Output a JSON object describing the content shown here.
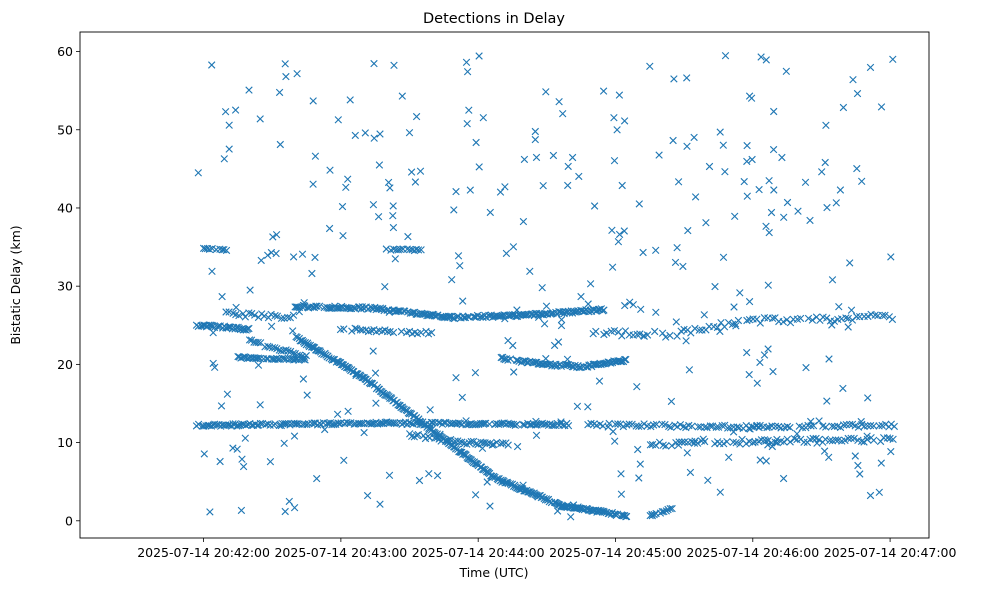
{
  "chart_data": {
    "type": "scatter",
    "title": "Detections in Delay",
    "xlabel": "Time (UTC)",
    "ylabel": "Bistatic Delay (km)",
    "marker": "x",
    "color": "#1f77b4",
    "grid": false,
    "xlim_seconds": [
      -54,
      317
    ],
    "ylim": [
      -2.2,
      62.5
    ],
    "x_ticks": [
      {
        "t": 0,
        "label": "2025-07-14 20:42:00"
      },
      {
        "t": 60,
        "label": "2025-07-14 20:43:00"
      },
      {
        "t": 120,
        "label": "2025-07-14 20:44:00"
      },
      {
        "t": 180,
        "label": "2025-07-14 20:45:00"
      },
      {
        "t": 240,
        "label": "2025-07-14 20:46:00"
      },
      {
        "t": 300,
        "label": "2025-07-14 20:47:00"
      }
    ],
    "y_ticks": [
      0,
      10,
      20,
      30,
      40,
      50,
      60
    ],
    "tracks": [
      {
        "name": "track-12-a",
        "t0": -3,
        "t1": 160,
        "step": 0.8,
        "y": [
          12.2,
          12.5,
          12.3
        ],
        "jitter": 0.15
      },
      {
        "name": "track-12-b",
        "t0": 168,
        "t1": 302,
        "step": 1.3,
        "y": [
          12.3,
          12.0,
          12.2
        ],
        "jitter": 0.2
      },
      {
        "name": "track-25-a",
        "t0": -3,
        "t1": 20,
        "step": 0.6,
        "y": [
          25.0,
          24.5
        ],
        "jitter": 0.15
      },
      {
        "name": "track-21",
        "t0": 15,
        "t1": 45,
        "step": 0.7,
        "y": [
          20.9,
          20.6
        ],
        "jitter": 0.1
      },
      {
        "name": "track-27",
        "t0": 40,
        "t1": 175,
        "step": 0.6,
        "y": [
          27.4,
          27.2,
          26.0,
          26.3,
          27.0
        ],
        "jitter": 0.15
      },
      {
        "name": "track-24-mid",
        "t0": 60,
        "t1": 100,
        "step": 1.2,
        "y": [
          24.5,
          24.0
        ],
        "jitter": 0.2
      },
      {
        "name": "track-diag",
        "t0": 40,
        "t1": 185,
        "step": 0.45,
        "y": [
          23.5,
          18.5,
          12.0,
          5.5,
          2.0,
          0.6
        ],
        "jitter": 0.15
      },
      {
        "name": "track-21-dip",
        "t0": 130,
        "t1": 185,
        "step": 0.6,
        "y": [
          20.8,
          20.0,
          19.7,
          20.6
        ],
        "jitter": 0.15
      },
      {
        "name": "track-10",
        "t0": 90,
        "t1": 135,
        "step": 1.0,
        "y": [
          11.0,
          10.0,
          9.8
        ],
        "jitter": 0.2
      },
      {
        "name": "track-10-late",
        "t0": 195,
        "t1": 302,
        "step": 1.4,
        "y": [
          9.8,
          10.2,
          10.4
        ],
        "jitter": 0.3
      },
      {
        "name": "track-24-late",
        "t0": 170,
        "t1": 302,
        "step": 1.6,
        "y": [
          24.2,
          23.8,
          25.5,
          25.8,
          26.1
        ],
        "jitter": 0.4
      },
      {
        "name": "track-35",
        "t0": 0,
        "t1": 10,
        "step": 0.9,
        "y": [
          34.8,
          34.6
        ],
        "jitter": 0.1
      },
      {
        "name": "track-35-b",
        "t0": 80,
        "t1": 95,
        "step": 1.0,
        "y": [
          34.7,
          34.6
        ],
        "jitter": 0.1
      },
      {
        "name": "track-26",
        "t0": 10,
        "t1": 40,
        "step": 1.4,
        "y": [
          26.5,
          26.0
        ],
        "jitter": 0.3
      },
      {
        "name": "track-22",
        "t0": 20,
        "t1": 45,
        "step": 1.0,
        "y": [
          23.0,
          21.0
        ],
        "jitter": 0.2
      },
      {
        "name": "track-1",
        "t0": 195,
        "t1": 205,
        "step": 0.9,
        "y": [
          0.6,
          1.6
        ],
        "jitter": 0.1
      }
    ],
    "noise": {
      "count": 340,
      "t_range": [
        -3,
        302
      ],
      "y_range": [
        0.5,
        60
      ],
      "seed": 20250714
    }
  }
}
